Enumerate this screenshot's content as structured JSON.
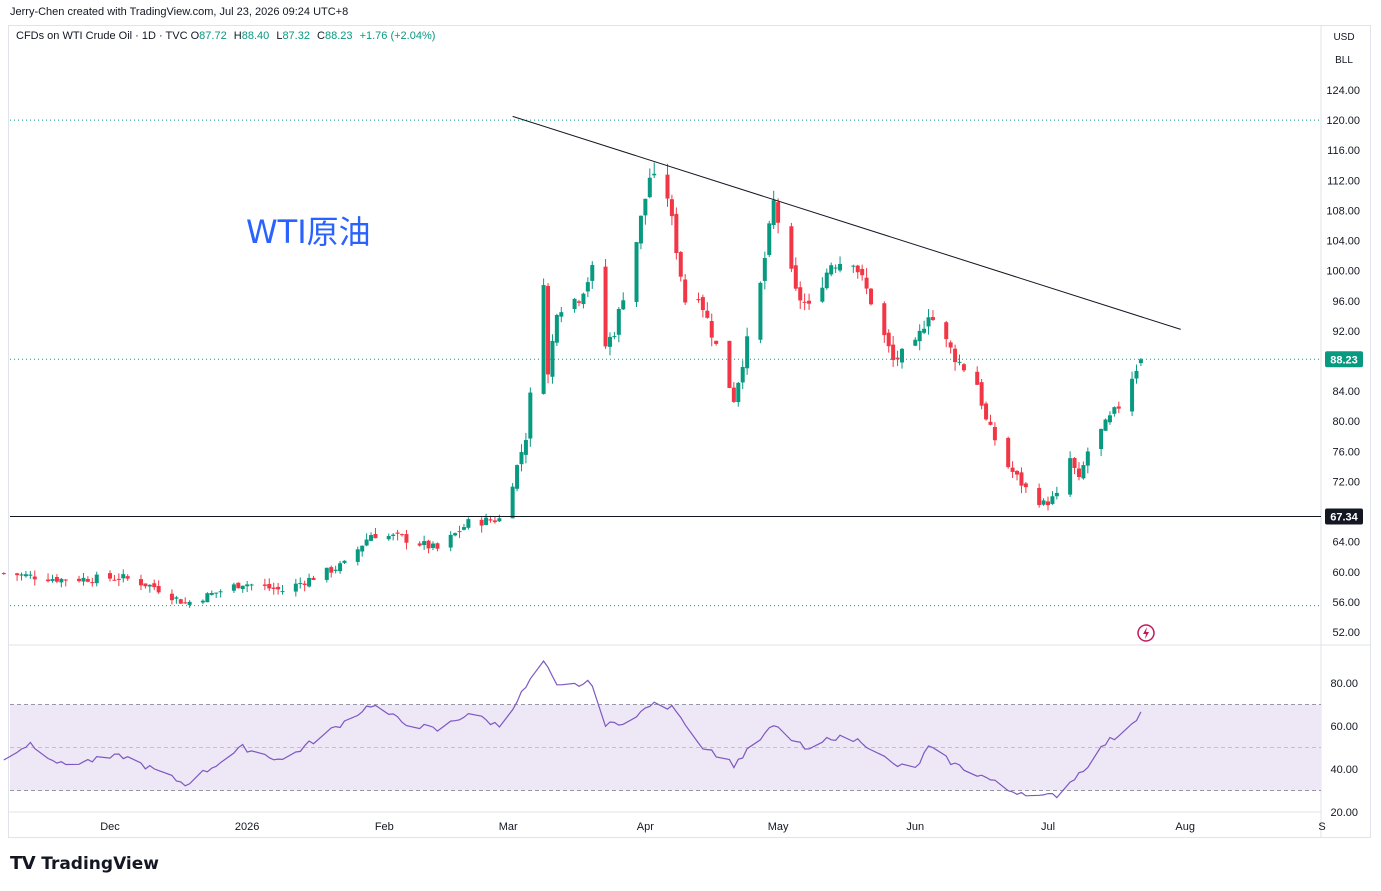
{
  "header": {
    "credit": "Jerry-Chen created with TradingView.com, Jul 23, 2026 09:24 UTC+8"
  },
  "legend": {
    "symbol": "CFDs on WTI Crude Oil · 1D · TVC",
    "open_label": "O",
    "open": "87.72",
    "high_label": "H",
    "high": "88.40",
    "low_label": "L",
    "low": "87.32",
    "close_label": "C",
    "close": "88.23",
    "change": "+1.76 (+2.04%)"
  },
  "units": {
    "currency": "USD",
    "unit": "BLL"
  },
  "annotation": {
    "watermark": "WTI原油"
  },
  "footer": {
    "logo": "TradingView"
  },
  "colors": {
    "up": "#089981",
    "down": "#f23645",
    "rsi": "#7e57c2",
    "rsi_band": "#ede7f6",
    "accent": "#2962ff"
  },
  "chart_data": [
    {
      "type": "candlestick",
      "title": "",
      "y_axis": {
        "min": 52,
        "max": 124,
        "ticks": [
          "124.00",
          "120.00",
          "116.00",
          "112.00",
          "108.00",
          "104.00",
          "100.00",
          "96.00",
          "92.00",
          "88.00",
          "84.00",
          "80.00",
          "76.00",
          "72.00",
          "68.00",
          "64.00",
          "60.00",
          "56.00",
          "52.00"
        ]
      },
      "x_axis": {
        "ticks": [
          "Dec",
          "2026",
          "Feb",
          "Mar",
          "Apr",
          "May",
          "Jun",
          "Jul",
          "Aug",
          "S"
        ]
      },
      "last_price": "88.23",
      "horizontal_line_label": "67.34",
      "horizontal_line_value": 67.34,
      "trendline": [
        {
          "date": "2026-03-02",
          "price": 120.5
        },
        {
          "date": "2026-07-31",
          "price": 92.2
        }
      ],
      "anchors": [
        [
          "2025-11-07",
          59.8
        ],
        [
          "2025-11-20",
          59.0
        ],
        [
          "2025-12-04",
          59.2
        ],
        [
          "2025-12-11",
          58.0
        ],
        [
          "2025-12-18",
          55.8
        ],
        [
          "2025-12-31",
          58.5
        ],
        [
          "2026-01-09",
          57.5
        ],
        [
          "2026-01-13",
          58.5
        ],
        [
          "2026-01-23",
          61.0
        ],
        [
          "2026-01-29",
          65.0
        ],
        [
          "2026-02-05",
          64.5
        ],
        [
          "2026-02-13",
          63.0
        ],
        [
          "2026-02-20",
          66.5
        ],
        [
          "2026-02-27",
          67.0
        ],
        [
          "2026-03-02",
          72.0
        ],
        [
          "2026-03-05",
          78.0
        ],
        [
          "2026-03-09",
          99.0
        ],
        [
          "2026-03-10",
          86.0
        ],
        [
          "2026-03-12",
          95.0
        ],
        [
          "2026-03-17",
          96.5
        ],
        [
          "2026-03-20",
          100.0
        ],
        [
          "2026-03-23",
          90.0
        ],
        [
          "2026-03-25",
          92.0
        ],
        [
          "2026-03-30",
          104.0
        ],
        [
          "2026-04-02",
          112.5
        ],
        [
          "2026-04-06",
          110.0
        ],
        [
          "2026-04-10",
          96.0
        ],
        [
          "2026-04-13",
          97.0
        ],
        [
          "2026-04-17",
          90.0
        ],
        [
          "2026-04-21",
          83.0
        ],
        [
          "2026-04-27",
          98.0
        ],
        [
          "2026-04-30",
          109.0
        ],
        [
          "2026-05-05",
          97.0
        ],
        [
          "2026-05-08",
          95.0
        ],
        [
          "2026-05-13",
          101.0
        ],
        [
          "2026-05-18",
          101.5
        ],
        [
          "2026-05-22",
          96.0
        ],
        [
          "2026-05-27",
          88.0
        ],
        [
          "2026-06-01",
          90.0
        ],
        [
          "2026-06-04",
          94.5
        ],
        [
          "2026-06-10",
          88.5
        ],
        [
          "2026-06-15",
          85.0
        ],
        [
          "2026-06-17",
          80.0
        ],
        [
          "2026-06-22",
          74.0
        ],
        [
          "2026-06-26",
          71.0
        ],
        [
          "2026-06-30",
          69.0
        ],
        [
          "2026-07-03",
          70.0
        ],
        [
          "2026-07-06",
          75.0
        ],
        [
          "2026-07-08",
          72.0
        ],
        [
          "2026-07-10",
          76.0
        ],
        [
          "2026-07-14",
          79.5
        ],
        [
          "2026-07-17",
          82.0
        ],
        [
          "2026-07-20",
          86.0
        ],
        [
          "2026-07-22",
          88.23
        ]
      ]
    },
    {
      "type": "line",
      "title": "",
      "y_axis": {
        "min": 20,
        "max": 90,
        "ticks": [
          "80.00",
          "60.00",
          "40.00",
          "20.00"
        ],
        "band": [
          30,
          70
        ],
        "mid": 50
      },
      "anchors": [
        [
          "2025-11-07",
          45
        ],
        [
          "2025-11-13",
          52
        ],
        [
          "2025-11-20",
          42
        ],
        [
          "2025-12-04",
          46
        ],
        [
          "2025-12-18",
          33
        ],
        [
          "2025-12-31",
          50
        ],
        [
          "2026-01-09",
          44
        ],
        [
          "2026-01-23",
          62
        ],
        [
          "2026-01-29",
          70
        ],
        [
          "2026-02-05",
          62
        ],
        [
          "2026-02-13",
          58
        ],
        [
          "2026-02-20",
          66
        ],
        [
          "2026-02-27",
          60
        ],
        [
          "2026-03-05",
          78
        ],
        [
          "2026-03-09",
          90
        ],
        [
          "2026-03-12",
          78
        ],
        [
          "2026-03-20",
          80
        ],
        [
          "2026-03-23",
          60
        ],
        [
          "2026-03-30",
          64
        ],
        [
          "2026-04-02",
          70
        ],
        [
          "2026-04-08",
          68
        ],
        [
          "2026-04-13",
          52
        ],
        [
          "2026-04-21",
          42
        ],
        [
          "2026-04-30",
          60
        ],
        [
          "2026-05-08",
          48
        ],
        [
          "2026-05-13",
          55
        ],
        [
          "2026-05-20",
          53
        ],
        [
          "2026-05-27",
          42
        ],
        [
          "2026-06-01",
          40
        ],
        [
          "2026-06-04",
          50
        ],
        [
          "2026-06-10",
          42
        ],
        [
          "2026-06-17",
          36
        ],
        [
          "2026-06-22",
          30
        ],
        [
          "2026-06-26",
          29
        ],
        [
          "2026-06-30",
          27
        ],
        [
          "2026-07-03",
          28
        ],
        [
          "2026-07-08",
          38
        ],
        [
          "2026-07-10",
          42
        ],
        [
          "2026-07-14",
          52
        ],
        [
          "2026-07-17",
          56
        ],
        [
          "2026-07-22",
          66
        ]
      ]
    }
  ]
}
